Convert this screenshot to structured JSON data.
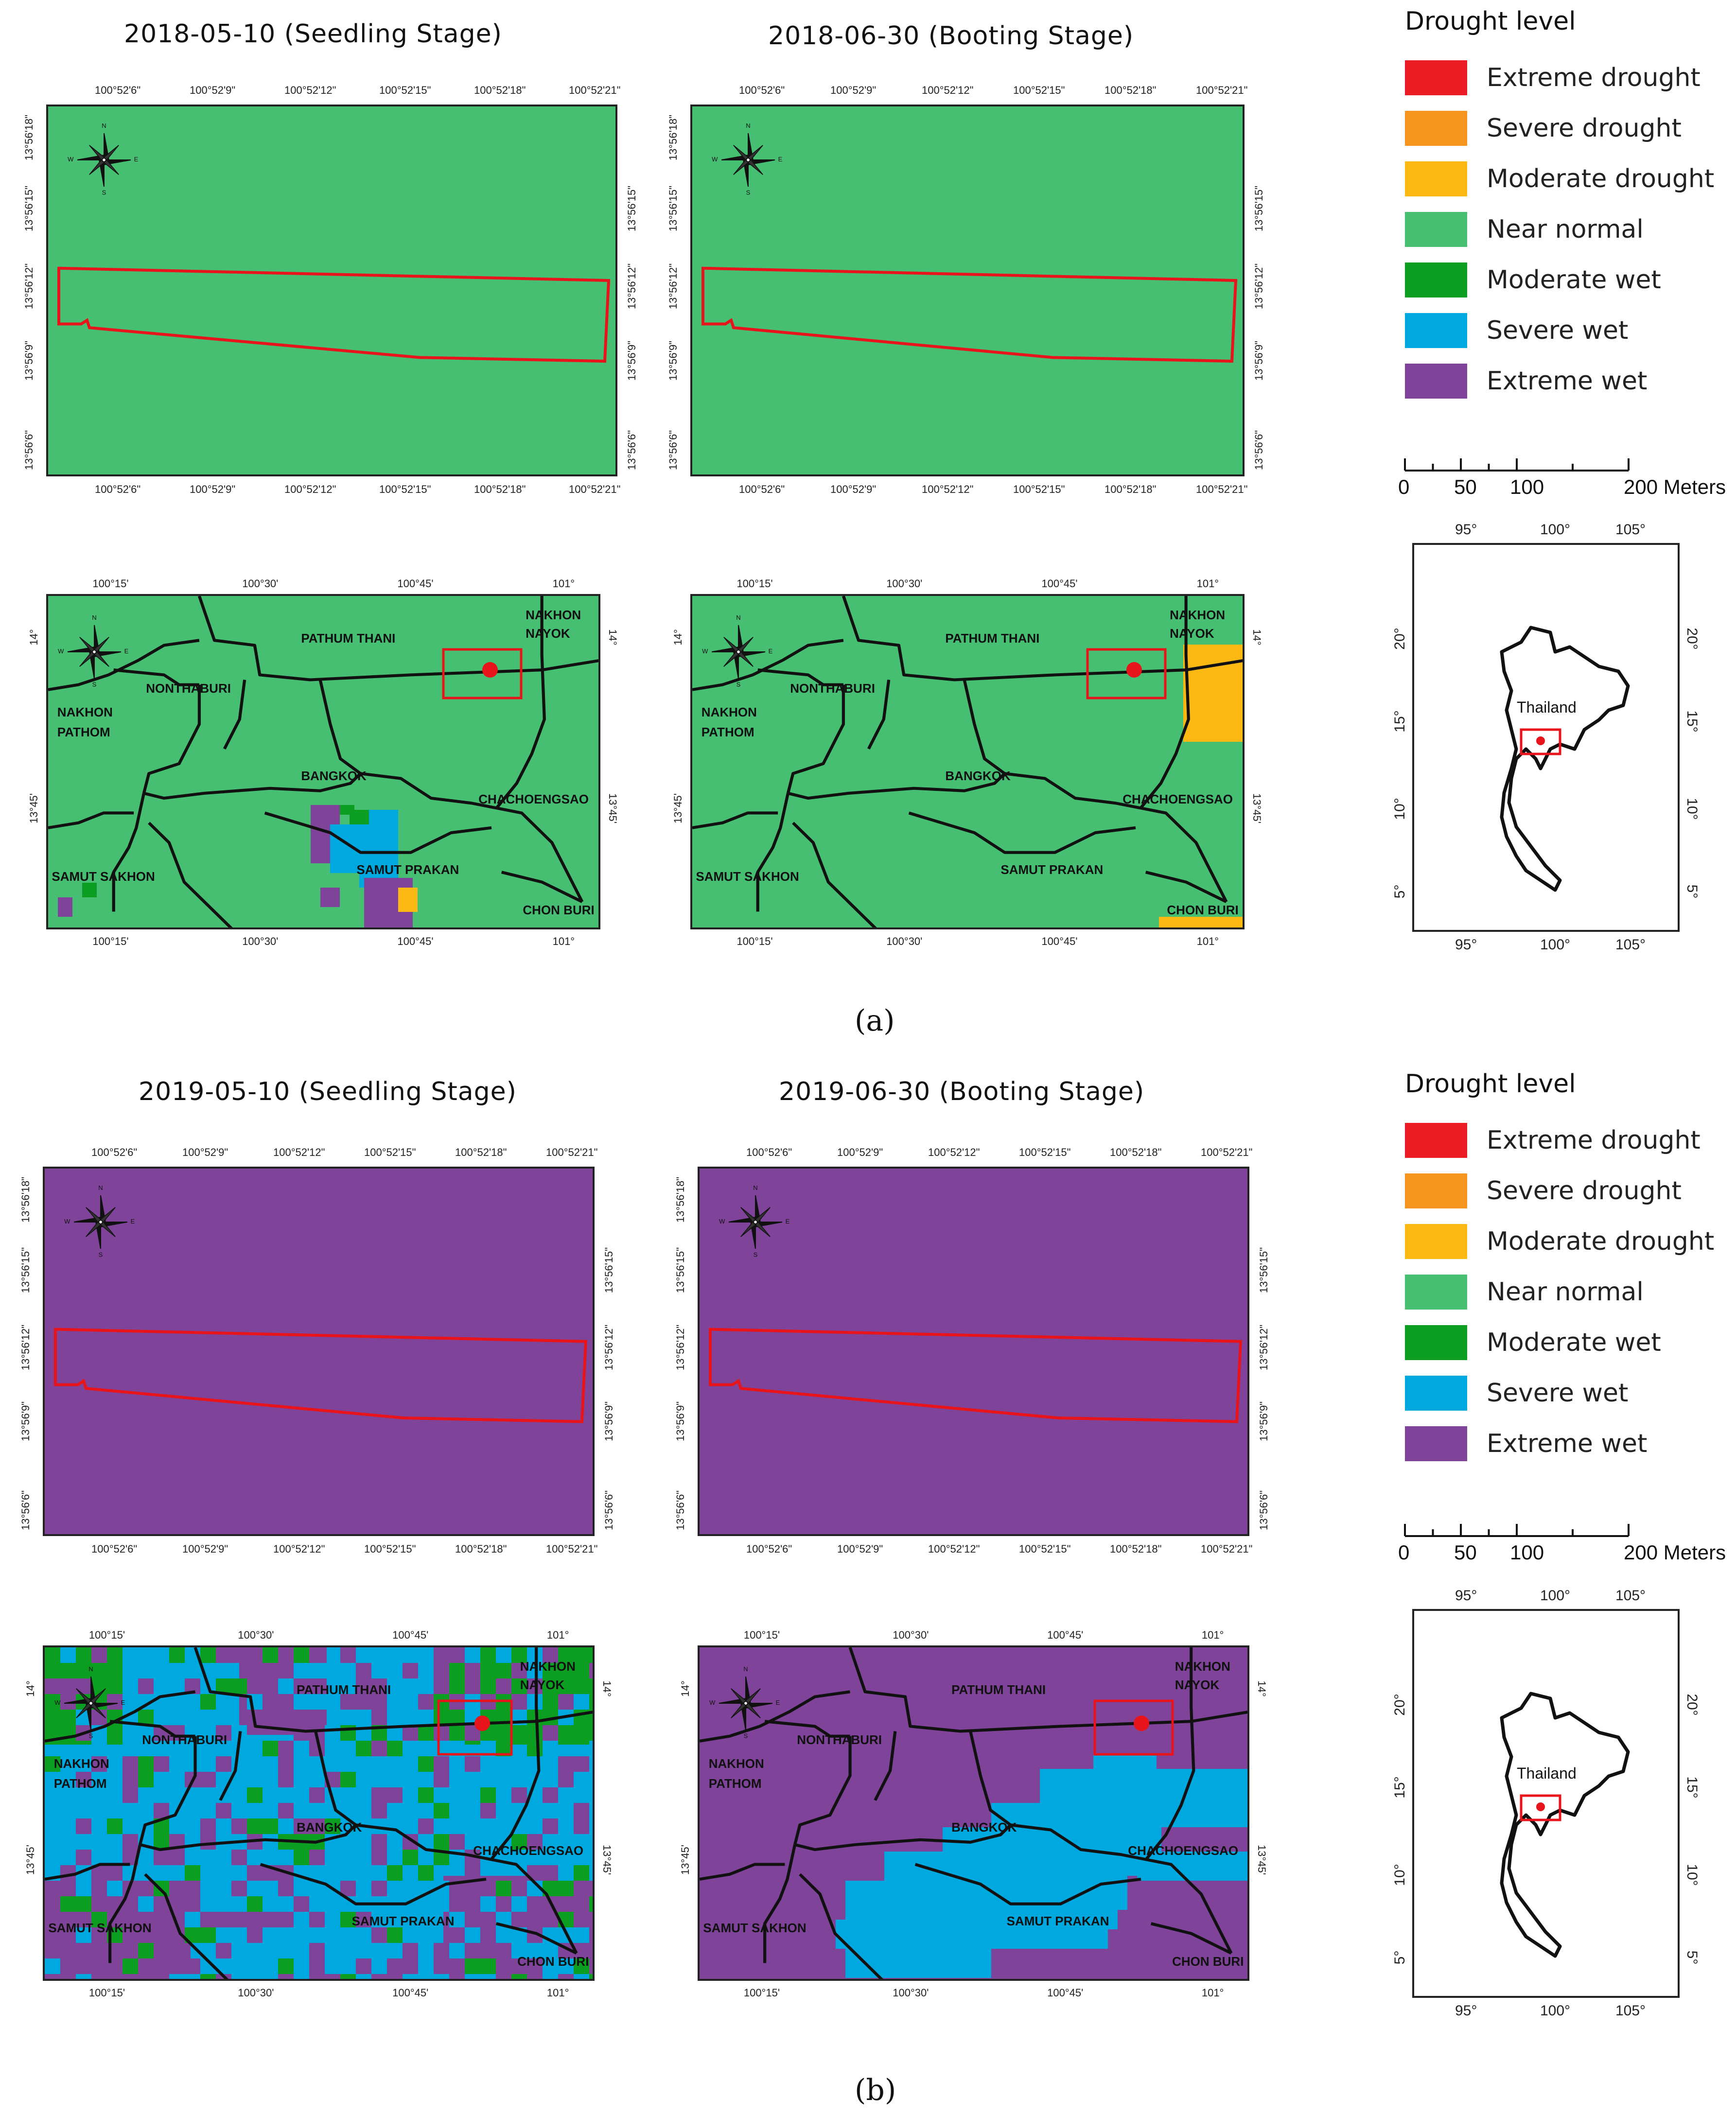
{
  "panels": {
    "a": {
      "caption": "(a)",
      "seedling_title": "2018-05-10 (Seedling Stage)",
      "booting_title": "2018-06-30 (Booting Stage)",
      "field_status_seedling": "Near normal",
      "field_status_booting": "Near normal"
    },
    "b": {
      "caption": "(b)",
      "seedling_title": "2019-05-10 (Seedling Stage)",
      "booting_title": "2019-06-30 (Booting Stage)",
      "field_status_seedling": "Extreme wet",
      "field_status_booting": "Extreme wet"
    }
  },
  "field_ticks": {
    "lon": [
      "100°52'6\"",
      "100°52'9\"",
      "100°52'12\"",
      "100°52'15\"",
      "100°52'18\"",
      "100°52'21\""
    ],
    "lat": [
      "13°56'18\"",
      "13°56'15\"",
      "13°56'12\"",
      "13°56'9\"",
      "13°56'6\""
    ]
  },
  "region_ticks": {
    "lon": [
      "100°15'",
      "100°30'",
      "100°45'",
      "101°"
    ],
    "lat": [
      "14°",
      "13°45'"
    ]
  },
  "provinces": {
    "pathum_thani": "PATHUM THANI",
    "nakhon_nayok_1": "NAKHON",
    "nakhon_nayok_2": "NAYOK",
    "nonthaburi": "NONTHABURI",
    "nakhon_pathom_1": "NAKHON",
    "nakhon_pathom_2": "PATHOM",
    "bangkok": "BANGKOK",
    "chachoengsao": "CHACHOENGSAO",
    "samut_sakhon": "SAMUT SAKHON",
    "samut_prakan": "SAMUT PRAKAN",
    "chon_buri": "CHON BURI"
  },
  "legend": {
    "title": "Drought level",
    "items": [
      {
        "label": "Extreme drought",
        "color": "#ec1c24"
      },
      {
        "label": "Severe drought",
        "color": "#f7941d"
      },
      {
        "label": "Moderate drought",
        "color": "#fdb913"
      },
      {
        "label": "Near normal",
        "color": "#47bf72"
      },
      {
        "label": "Moderate wet",
        "color": "#0b9e20"
      },
      {
        "label": "Severe wet",
        "color": "#00a8e0"
      },
      {
        "label": "Extreme wet",
        "color": "#7f4499"
      }
    ]
  },
  "scale_bar": {
    "labels": [
      "0",
      "50",
      "100",
      "200 Meters"
    ]
  },
  "locator": {
    "country_label": "Thailand",
    "lon_ticks": [
      "95°",
      "100°",
      "105°"
    ],
    "lat_ticks": [
      "20°",
      "15°",
      "10°",
      "5°"
    ]
  },
  "colors": {
    "field_outline": "#e8141b",
    "boundary": "#111111"
  }
}
